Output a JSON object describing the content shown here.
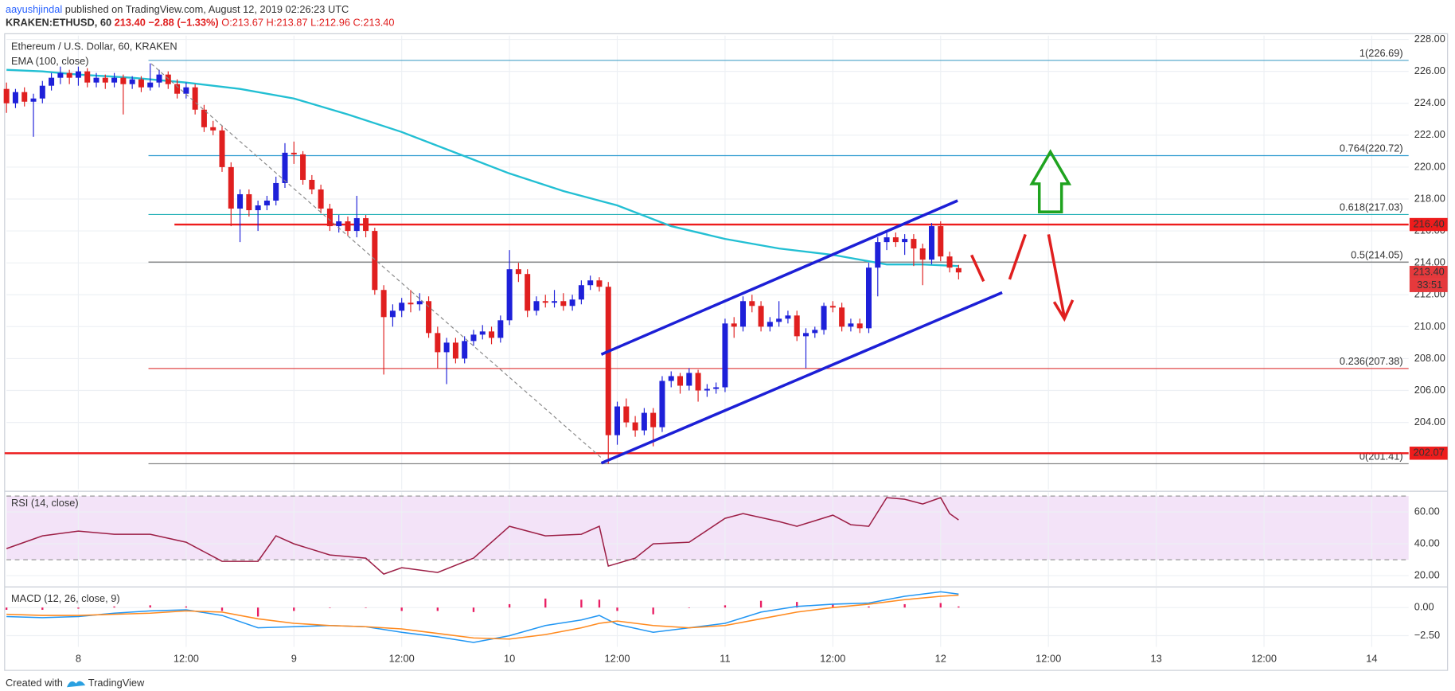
{
  "header": {
    "author": "aayushjindal",
    "published": "published on TradingView.com, August 12, 2019 02:26:23 UTC",
    "symbol": "KRAKEN:ETHUSD, 60",
    "last": "213.40",
    "change": "−2.88 (−1.33%)",
    "open": "O:213.67",
    "high": "H:213.87",
    "low": "L:212.96",
    "close": "C:213.40"
  },
  "footer": {
    "created": "Created with",
    "brand": "TradingView"
  },
  "chart_data": [
    {
      "type": "candlestick",
      "title": "Ethereum / U.S. Dollar, 60, KRAKEN",
      "up_color": "#1e20d9",
      "down_color": "#e01f1f",
      "grid": true,
      "xlim": [
        -8,
        148.1
      ],
      "xticks": [
        {
          "value": 0,
          "label": "8"
        },
        {
          "value": 12,
          "label": "12:00"
        },
        {
          "value": 24,
          "label": "9"
        },
        {
          "value": 36,
          "label": "12:00"
        },
        {
          "value": 48,
          "label": "10"
        },
        {
          "value": 60,
          "label": "12:00"
        },
        {
          "value": 72,
          "label": "11"
        },
        {
          "value": 84,
          "label": "12:00"
        },
        {
          "value": 96,
          "label": "12"
        },
        {
          "value": 108,
          "label": "12:00"
        },
        {
          "value": 120,
          "label": "13"
        },
        {
          "value": 132,
          "label": "12:00"
        },
        {
          "value": 144,
          "label": "14"
        }
      ],
      "ylim": [
        199.8,
        228.24
      ],
      "yticks": [
        {
          "value": 202,
          "label": "202.00"
        },
        {
          "value": 204,
          "label": "204.00"
        },
        {
          "value": 206,
          "label": "206.00"
        },
        {
          "value": 208,
          "label": "208.00"
        },
        {
          "value": 210,
          "label": "210.00"
        },
        {
          "value": 212,
          "label": "212.00"
        },
        {
          "value": 214,
          "label": "214.00"
        },
        {
          "value": 216,
          "label": "216.00"
        },
        {
          "value": 218,
          "label": "218.00"
        },
        {
          "value": 220,
          "label": "220.00"
        },
        {
          "value": 222,
          "label": "222.00"
        },
        {
          "value": 224,
          "label": "224.00"
        },
        {
          "value": 226,
          "label": "226.00"
        },
        {
          "value": 228,
          "label": "228.00"
        }
      ],
      "x": [
        -8,
        -7,
        -6,
        -5,
        -4,
        -3,
        -2,
        -1,
        0,
        1,
        2,
        3,
        4,
        5,
        6,
        7,
        8,
        9,
        10,
        11,
        12,
        13,
        14,
        15,
        16,
        17,
        18,
        19,
        20,
        21,
        22,
        23,
        24,
        25,
        26,
        27,
        28,
        29,
        30,
        31,
        32,
        33,
        34,
        35,
        36,
        37,
        38,
        39,
        40,
        41,
        42,
        43,
        44,
        45,
        46,
        47,
        48,
        49,
        50,
        51,
        52,
        53,
        54,
        55,
        56,
        57,
        58,
        59,
        60,
        61,
        62,
        63,
        64,
        65,
        66,
        67,
        68,
        69,
        70,
        71,
        72,
        73,
        74,
        75,
        76,
        77,
        78,
        79,
        80,
        81,
        82,
        83,
        84,
        85,
        86,
        87,
        88,
        89,
        90,
        91,
        92,
        93,
        94,
        95,
        96,
        97,
        98
      ],
      "ohlc": [
        [
          224.9,
          225.3,
          223.4,
          224.0
        ],
        [
          224.0,
          224.9,
          223.7,
          224.7
        ],
        [
          224.7,
          225.0,
          223.8,
          224.1
        ],
        [
          224.1,
          224.6,
          221.9,
          224.3
        ],
        [
          224.3,
          225.4,
          224.0,
          225.1
        ],
        [
          225.1,
          225.9,
          224.8,
          225.6
        ],
        [
          225.6,
          226.3,
          225.2,
          225.9
        ],
        [
          225.9,
          226.1,
          225.2,
          225.6
        ],
        [
          225.6,
          226.3,
          225.1,
          226.0
        ],
        [
          226.0,
          226.2,
          225.0,
          225.3
        ],
        [
          225.3,
          225.9,
          225.0,
          225.6
        ],
        [
          225.6,
          225.8,
          224.9,
          225.3
        ],
        [
          225.3,
          225.9,
          225.0,
          225.6
        ],
        [
          225.6,
          225.8,
          223.3,
          225.2
        ],
        [
          225.2,
          225.7,
          224.9,
          225.5
        ],
        [
          225.5,
          225.7,
          224.7,
          225.0
        ],
        [
          225.0,
          226.5,
          224.8,
          225.3
        ],
        [
          225.3,
          226.1,
          225.0,
          225.8
        ],
        [
          225.8,
          226.0,
          224.9,
          225.2
        ],
        [
          225.2,
          225.5,
          224.3,
          224.6
        ],
        [
          224.6,
          225.3,
          224.3,
          225.0
        ],
        [
          225.0,
          225.2,
          223.3,
          223.6
        ],
        [
          223.6,
          223.9,
          222.2,
          222.5
        ],
        [
          222.5,
          222.9,
          222.0,
          222.3
        ],
        [
          222.3,
          222.6,
          219.7,
          220.0
        ],
        [
          220.0,
          220.3,
          216.3,
          217.4
        ],
        [
          217.4,
          218.6,
          215.3,
          218.3
        ],
        [
          218.3,
          218.6,
          216.9,
          217.3
        ],
        [
          217.3,
          217.9,
          216.0,
          217.6
        ],
        [
          217.6,
          218.2,
          217.3,
          217.9
        ],
        [
          217.9,
          219.4,
          217.6,
          219.0
        ],
        [
          219.0,
          221.5,
          218.7,
          220.9
        ],
        [
          220.9,
          221.6,
          220.2,
          220.8
        ],
        [
          220.8,
          221.0,
          218.9,
          219.2
        ],
        [
          219.2,
          219.5,
          218.3,
          218.6
        ],
        [
          218.6,
          218.9,
          217.1,
          217.4
        ],
        [
          217.4,
          217.7,
          216.0,
          216.3
        ],
        [
          216.3,
          217.0,
          215.9,
          216.6
        ],
        [
          216.6,
          216.9,
          215.7,
          216.0
        ],
        [
          216.0,
          218.2,
          215.6,
          216.8
        ],
        [
          216.8,
          217.0,
          215.6,
          216.0
        ],
        [
          216.0,
          216.2,
          212.0,
          212.3
        ],
        [
          212.3,
          212.6,
          207.0,
          210.6
        ],
        [
          210.6,
          211.4,
          210.0,
          211.0
        ],
        [
          211.0,
          211.8,
          210.6,
          211.5
        ],
        [
          211.5,
          212.3,
          210.9,
          211.4
        ],
        [
          211.4,
          212.1,
          211.0,
          211.6
        ],
        [
          211.6,
          211.9,
          209.3,
          209.6
        ],
        [
          209.6,
          210.0,
          207.4,
          208.4
        ],
        [
          208.4,
          209.3,
          206.4,
          209.0
        ],
        [
          209.0,
          209.3,
          207.7,
          208.0
        ],
        [
          208.0,
          209.4,
          207.7,
          209.1
        ],
        [
          209.1,
          209.8,
          208.8,
          209.5
        ],
        [
          209.5,
          210.1,
          209.2,
          209.7
        ],
        [
          209.7,
          210.0,
          208.9,
          209.3
        ],
        [
          209.3,
          210.7,
          209.0,
          210.4
        ],
        [
          210.4,
          214.8,
          210.1,
          213.6
        ],
        [
          213.6,
          214.0,
          212.8,
          213.3
        ],
        [
          213.3,
          213.6,
          210.6,
          211.0
        ],
        [
          211.0,
          211.9,
          210.7,
          211.6
        ],
        [
          211.6,
          212.0,
          211.2,
          211.5
        ],
        [
          211.5,
          212.3,
          211.2,
          211.6
        ],
        [
          211.6,
          212.1,
          211.0,
          211.3
        ],
        [
          211.3,
          212.0,
          211.0,
          211.7
        ],
        [
          211.7,
          212.9,
          211.4,
          212.6
        ],
        [
          212.6,
          213.2,
          212.3,
          212.9
        ],
        [
          212.9,
          213.1,
          212.2,
          212.5
        ],
        [
          212.5,
          212.8,
          201.41,
          203.2
        ],
        [
          203.2,
          205.3,
          202.6,
          205.0
        ],
        [
          205.0,
          205.5,
          203.7,
          204.0
        ],
        [
          204.0,
          204.4,
          203.1,
          203.5
        ],
        [
          203.5,
          204.9,
          203.2,
          204.6
        ],
        [
          204.6,
          204.9,
          202.5,
          203.7
        ],
        [
          203.7,
          206.9,
          203.4,
          206.6
        ],
        [
          206.6,
          207.2,
          206.2,
          206.9
        ],
        [
          206.9,
          207.1,
          205.8,
          206.3
        ],
        [
          206.3,
          207.4,
          206.0,
          207.1
        ],
        [
          207.1,
          207.3,
          205.3,
          206.0
        ],
        [
          206.0,
          206.4,
          205.6,
          206.1
        ],
        [
          206.1,
          206.5,
          205.8,
          206.2
        ],
        [
          206.2,
          210.5,
          205.9,
          210.2
        ],
        [
          210.2,
          210.6,
          209.3,
          210.0
        ],
        [
          210.0,
          211.9,
          209.7,
          211.6
        ],
        [
          211.6,
          212.0,
          210.9,
          211.3
        ],
        [
          211.3,
          211.6,
          209.7,
          210.0
        ],
        [
          210.0,
          210.6,
          209.7,
          210.3
        ],
        [
          210.3,
          211.6,
          210.0,
          210.5
        ],
        [
          210.5,
          211.0,
          210.2,
          210.7
        ],
        [
          210.7,
          211.0,
          209.1,
          209.4
        ],
        [
          209.4,
          209.9,
          207.4,
          209.6
        ],
        [
          209.6,
          210.0,
          209.3,
          209.8
        ],
        [
          209.8,
          211.5,
          209.5,
          211.3
        ],
        [
          211.3,
          211.6,
          210.9,
          211.2
        ],
        [
          211.2,
          211.5,
          209.7,
          210.0
        ],
        [
          210.0,
          210.5,
          209.7,
          210.2
        ],
        [
          210.2,
          210.5,
          209.6,
          209.9
        ],
        [
          209.9,
          214.0,
          209.6,
          213.7
        ],
        [
          213.7,
          215.6,
          211.9,
          215.3
        ],
        [
          215.3,
          215.9,
          214.8,
          215.6
        ],
        [
          215.6,
          215.9,
          215.0,
          215.3
        ],
        [
          215.3,
          215.8,
          214.5,
          215.5
        ],
        [
          215.5,
          215.8,
          213.8,
          214.9
        ],
        [
          214.9,
          215.2,
          212.6,
          214.2
        ],
        [
          214.2,
          216.5,
          213.9,
          216.3
        ],
        [
          216.3,
          216.6,
          214.1,
          214.4
        ],
        [
          214.4,
          214.7,
          213.4,
          213.7
        ],
        [
          213.67,
          213.87,
          212.96,
          213.4
        ]
      ],
      "series": [
        {
          "name": "EMA (100, close)",
          "color": "#22bfd3",
          "x": [
            -8,
            -4,
            0,
            6,
            12,
            18,
            24,
            30,
            36,
            42,
            48,
            54,
            60,
            66,
            72,
            78,
            84,
            90,
            94,
            98
          ],
          "values": [
            226.1,
            226.0,
            225.8,
            225.6,
            225.3,
            224.9,
            224.3,
            223.3,
            222.2,
            220.9,
            219.6,
            218.5,
            217.6,
            216.3,
            215.5,
            214.9,
            214.5,
            213.9,
            213.9,
            213.8
          ]
        }
      ],
      "levels": [
        {
          "label": "1(226.69)",
          "value": 226.69,
          "color": "#4aa3c9"
        },
        {
          "label": "0.764(220.72)",
          "value": 220.72,
          "color": "#2e9bd0"
        },
        {
          "label": "0.618(217.03)",
          "value": 217.03,
          "color": "#26b1b8"
        },
        {
          "label": "0.5(214.05)",
          "value": 214.05,
          "color": "#666666"
        },
        {
          "label": "0.236(207.38)",
          "value": 207.38,
          "color": "#e04848"
        },
        {
          "label": "0(201.41)",
          "value": 201.41,
          "color": "#888888"
        }
      ],
      "price_lines": [
        {
          "label": "216.40",
          "value": 216.4,
          "color": "#ee1c1c"
        },
        {
          "label": "202.07",
          "value": 202.07,
          "color": "#ee1c1c"
        }
      ],
      "last_price": {
        "label": "213.40",
        "value": 213.4,
        "color": "#e5393c"
      },
      "countdown": "33:51"
    },
    {
      "type": "line",
      "title": "RSI (14, close)",
      "color": "#9c1e45",
      "band": [
        30,
        70
      ],
      "band_color": "#f3e3f8",
      "ylim": [
        13.5,
        72.4
      ],
      "yticks": [
        {
          "value": 20,
          "label": "20.00"
        },
        {
          "value": 40,
          "label": "40.00"
        },
        {
          "value": 60,
          "label": "60.00"
        }
      ],
      "x": [
        -8,
        -4,
        0,
        4,
        8,
        12,
        16,
        20,
        22,
        24,
        28,
        32,
        34,
        36,
        40,
        44,
        48,
        52,
        56,
        58,
        59,
        62,
        64,
        68,
        72,
        74,
        78,
        80,
        84,
        86,
        88,
        90,
        92,
        94,
        96,
        97,
        98
      ],
      "values": [
        37,
        45,
        48,
        46,
        46,
        41,
        29,
        29,
        45,
        40,
        33,
        31,
        21,
        25,
        22,
        31,
        51,
        45,
        46,
        51,
        26,
        31,
        40,
        41,
        56,
        59,
        54,
        51,
        58,
        52,
        51,
        69,
        68,
        65,
        69,
        59,
        55
      ]
    },
    {
      "type": "macd",
      "title": "MACD (12, 26, close, 9)",
      "ylim": [
        -3.5,
        1.75
      ],
      "yticks": [
        {
          "value": 0,
          "label": "0.00"
        },
        {
          "value": -2.5,
          "label": "−2.50"
        }
      ],
      "x": [
        -8,
        -4,
        0,
        4,
        8,
        12,
        16,
        20,
        24,
        28,
        32,
        36,
        40,
        44,
        48,
        52,
        56,
        58,
        60,
        64,
        68,
        72,
        76,
        80,
        84,
        88,
        92,
        96,
        98
      ],
      "series": [
        {
          "color": "#2196f3",
          "values": [
            -0.8,
            -0.9,
            -0.8,
            -0.5,
            -0.3,
            -0.2,
            -0.7,
            -1.8,
            -1.7,
            -1.6,
            -1.7,
            -2.2,
            -2.6,
            -3.1,
            -2.5,
            -1.6,
            -1.1,
            -0.7,
            -1.5,
            -2.2,
            -1.8,
            -1.4,
            -0.4,
            0.1,
            0.3,
            0.4,
            1.0,
            1.4,
            1.2
          ]
        },
        {
          "color": "#ff8a1f",
          "values": [
            -0.6,
            -0.7,
            -0.7,
            -0.6,
            -0.5,
            -0.3,
            -0.4,
            -1.0,
            -1.4,
            -1.6,
            -1.7,
            -1.9,
            -2.3,
            -2.7,
            -2.8,
            -2.4,
            -1.8,
            -1.4,
            -1.2,
            -1.6,
            -1.8,
            -1.6,
            -1.0,
            -0.4,
            0.0,
            0.3,
            0.7,
            1.0,
            1.1
          ]
        }
      ],
      "histogram": {
        "color": "#e91e63",
        "values": [
          -0.2,
          -0.2,
          -0.1,
          0.1,
          0.2,
          0.1,
          -0.3,
          -0.8,
          -0.3,
          0,
          0,
          -0.3,
          -0.3,
          -0.4,
          0.3,
          0.8,
          0.7,
          0.7,
          -0.3,
          -0.6,
          0,
          0.2,
          0.6,
          0.5,
          0.3,
          0.1,
          0.3,
          0.4,
          0.1
        ]
      }
    }
  ]
}
